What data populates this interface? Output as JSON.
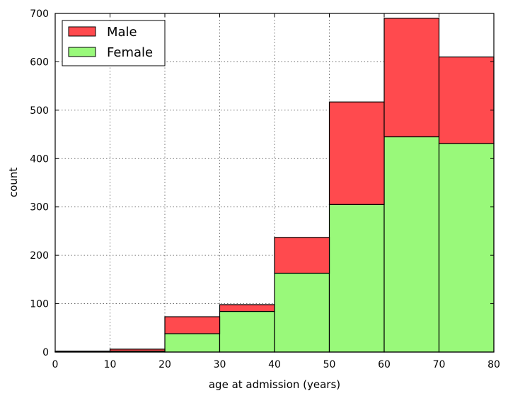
{
  "chart_data": {
    "type": "bar",
    "stacked": true,
    "histogram": true,
    "bin_edges": [
      0,
      10,
      20,
      30,
      40,
      50,
      60,
      70,
      80
    ],
    "series": [
      {
        "name": "Female",
        "color": "#99f97a",
        "values": [
          1,
          2,
          38,
          84,
          163,
          305,
          445,
          431
        ]
      },
      {
        "name": "Male",
        "color": "#ff4a4e",
        "values": [
          1,
          4,
          35,
          14,
          74,
          212,
          245,
          179
        ]
      }
    ],
    "xlabel": "age at admission (years)",
    "ylabel": "count",
    "xlim": [
      0,
      80
    ],
    "ylim": [
      0,
      700
    ],
    "xticks": [
      0,
      10,
      20,
      30,
      40,
      50,
      60,
      70,
      80
    ],
    "yticks": [
      0,
      100,
      200,
      300,
      400,
      500,
      600,
      700
    ],
    "grid": true,
    "legend": {
      "placement": "top-left",
      "entries": [
        {
          "label": "Male",
          "color": "#ff4a4e"
        },
        {
          "label": "Female",
          "color": "#99f97a"
        }
      ]
    }
  }
}
